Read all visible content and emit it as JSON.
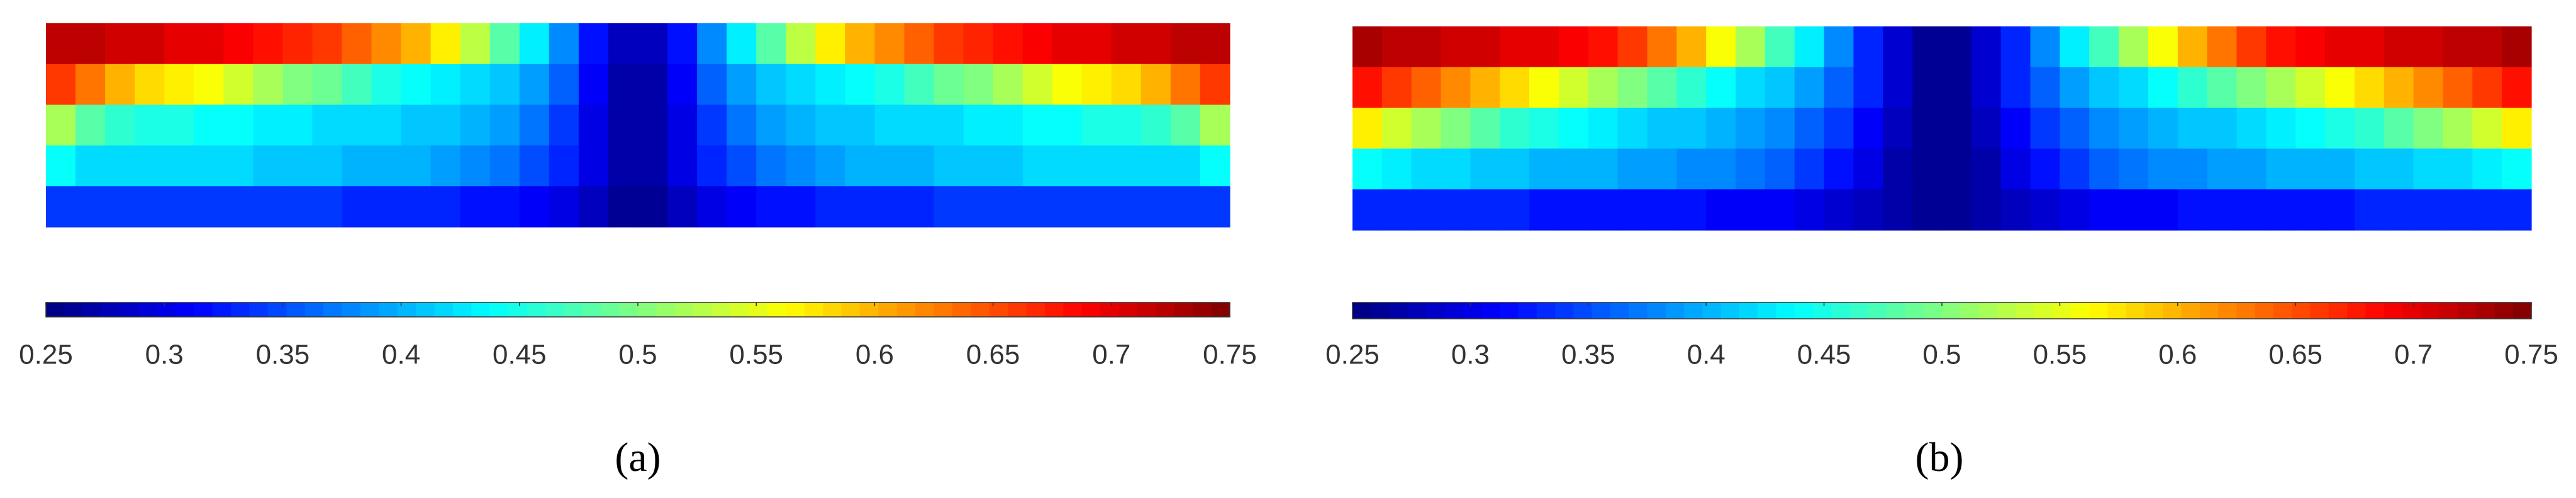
{
  "chart_data": [
    {
      "type": "heatmap",
      "label": "(a)",
      "colormap": "jet",
      "clim": [
        0.25,
        0.75
      ],
      "cticks": [
        0.25,
        0.3,
        0.35,
        0.4,
        0.45,
        0.5,
        0.55,
        0.6,
        0.65,
        0.7,
        0.75
      ],
      "values": [
        [
          0.72,
          0.72,
          0.71,
          0.71,
          0.7,
          0.7,
          0.69,
          0.68,
          0.67,
          0.66,
          0.64,
          0.62,
          0.6,
          0.57,
          0.53,
          0.48,
          0.43,
          0.38,
          0.32,
          0.28,
          0.28,
          0.32,
          0.38,
          0.43,
          0.48,
          0.53,
          0.57,
          0.6,
          0.62,
          0.64,
          0.66,
          0.67,
          0.68,
          0.69,
          0.7,
          0.7,
          0.71,
          0.71,
          0.72,
          0.72
        ],
        [
          0.66,
          0.63,
          0.6,
          0.58,
          0.57,
          0.56,
          0.54,
          0.52,
          0.5,
          0.49,
          0.47,
          0.45,
          0.44,
          0.43,
          0.42,
          0.41,
          0.39,
          0.36,
          0.31,
          0.27,
          0.27,
          0.31,
          0.36,
          0.39,
          0.41,
          0.42,
          0.43,
          0.44,
          0.45,
          0.47,
          0.49,
          0.5,
          0.52,
          0.54,
          0.56,
          0.57,
          0.58,
          0.6,
          0.63,
          0.66
        ],
        [
          0.52,
          0.48,
          0.46,
          0.45,
          0.45,
          0.44,
          0.44,
          0.43,
          0.43,
          0.42,
          0.42,
          0.42,
          0.41,
          0.41,
          0.4,
          0.39,
          0.37,
          0.34,
          0.3,
          0.27,
          0.27,
          0.3,
          0.34,
          0.37,
          0.39,
          0.4,
          0.41,
          0.41,
          0.42,
          0.42,
          0.42,
          0.43,
          0.43,
          0.44,
          0.44,
          0.45,
          0.45,
          0.46,
          0.48,
          0.52
        ],
        [
          0.44,
          0.42,
          0.42,
          0.42,
          0.42,
          0.42,
          0.42,
          0.41,
          0.41,
          0.41,
          0.4,
          0.4,
          0.4,
          0.39,
          0.38,
          0.37,
          0.35,
          0.33,
          0.3,
          0.27,
          0.27,
          0.3,
          0.33,
          0.35,
          0.37,
          0.38,
          0.39,
          0.4,
          0.4,
          0.4,
          0.41,
          0.41,
          0.41,
          0.42,
          0.42,
          0.42,
          0.42,
          0.42,
          0.42,
          0.44
        ],
        [
          0.34,
          0.34,
          0.34,
          0.34,
          0.34,
          0.34,
          0.34,
          0.34,
          0.34,
          0.34,
          0.33,
          0.33,
          0.33,
          0.33,
          0.32,
          0.32,
          0.31,
          0.3,
          0.28,
          0.26,
          0.26,
          0.28,
          0.3,
          0.31,
          0.32,
          0.32,
          0.33,
          0.33,
          0.33,
          0.33,
          0.34,
          0.34,
          0.34,
          0.34,
          0.34,
          0.34,
          0.34,
          0.34,
          0.34,
          0.34
        ]
      ]
    },
    {
      "type": "heatmap",
      "label": "(b)",
      "colormap": "jet",
      "clim": [
        0.25,
        0.75
      ],
      "cticks": [
        0.25,
        0.3,
        0.35,
        0.4,
        0.45,
        0.5,
        0.55,
        0.6,
        0.65,
        0.7,
        0.75
      ],
      "values": [
        [
          0.73,
          0.72,
          0.72,
          0.71,
          0.71,
          0.7,
          0.7,
          0.69,
          0.68,
          0.66,
          0.63,
          0.6,
          0.56,
          0.52,
          0.47,
          0.43,
          0.38,
          0.33,
          0.29,
          0.26,
          0.26,
          0.29,
          0.33,
          0.38,
          0.43,
          0.47,
          0.52,
          0.56,
          0.6,
          0.63,
          0.66,
          0.68,
          0.69,
          0.7,
          0.7,
          0.71,
          0.71,
          0.72,
          0.72,
          0.73
        ],
        [
          0.68,
          0.66,
          0.64,
          0.62,
          0.6,
          0.58,
          0.56,
          0.54,
          0.52,
          0.5,
          0.48,
          0.46,
          0.44,
          0.42,
          0.41,
          0.39,
          0.36,
          0.33,
          0.29,
          0.26,
          0.26,
          0.29,
          0.33,
          0.36,
          0.39,
          0.41,
          0.42,
          0.44,
          0.46,
          0.48,
          0.5,
          0.52,
          0.54,
          0.56,
          0.58,
          0.6,
          0.62,
          0.64,
          0.66,
          0.68
        ],
        [
          0.57,
          0.54,
          0.52,
          0.5,
          0.48,
          0.46,
          0.45,
          0.44,
          0.43,
          0.42,
          0.41,
          0.41,
          0.4,
          0.39,
          0.38,
          0.36,
          0.34,
          0.31,
          0.28,
          0.26,
          0.26,
          0.28,
          0.31,
          0.34,
          0.36,
          0.38,
          0.39,
          0.4,
          0.41,
          0.41,
          0.42,
          0.43,
          0.44,
          0.45,
          0.46,
          0.48,
          0.5,
          0.52,
          0.54,
          0.57
        ],
        [
          0.44,
          0.43,
          0.42,
          0.42,
          0.41,
          0.41,
          0.4,
          0.4,
          0.4,
          0.39,
          0.39,
          0.38,
          0.38,
          0.37,
          0.36,
          0.34,
          0.32,
          0.3,
          0.27,
          0.26,
          0.26,
          0.27,
          0.3,
          0.32,
          0.34,
          0.36,
          0.37,
          0.38,
          0.38,
          0.39,
          0.39,
          0.4,
          0.4,
          0.4,
          0.41,
          0.41,
          0.42,
          0.42,
          0.43,
          0.44
        ],
        [
          0.33,
          0.33,
          0.33,
          0.33,
          0.33,
          0.33,
          0.32,
          0.32,
          0.32,
          0.32,
          0.32,
          0.32,
          0.31,
          0.31,
          0.31,
          0.3,
          0.29,
          0.28,
          0.27,
          0.26,
          0.26,
          0.27,
          0.28,
          0.29,
          0.3,
          0.31,
          0.31,
          0.31,
          0.32,
          0.32,
          0.32,
          0.32,
          0.32,
          0.32,
          0.33,
          0.33,
          0.33,
          0.33,
          0.33,
          0.33
        ]
      ]
    }
  ]
}
